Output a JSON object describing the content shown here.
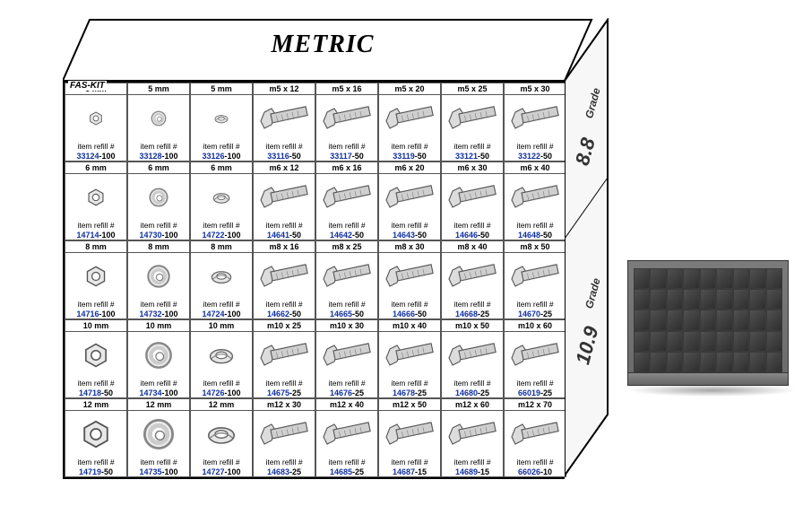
{
  "title": "METRIC",
  "brand": "FAS-KIT",
  "side_labels": {
    "grade_word": "Grade",
    "grade_top": "8.8",
    "grade_bottom": "10.9"
  },
  "refill_label": "item refill #",
  "colors": {
    "partno": "#1030a0",
    "border": "#000000",
    "cell_border": "#555555",
    "bg": "#ffffff",
    "cabinet": "#6f6f6f"
  },
  "rows": [
    [
      {
        "size": "5 mm",
        "type": "nut",
        "pn": "33124",
        "qty": "100"
      },
      {
        "size": "5 mm",
        "type": "washer",
        "pn": "33128",
        "qty": "100"
      },
      {
        "size": "5 mm",
        "type": "lockwasher",
        "pn": "33126",
        "qty": "100"
      },
      {
        "size": "m5 x 12",
        "type": "bolt",
        "pn": "33116",
        "qty": "50"
      },
      {
        "size": "m5 x 16",
        "type": "bolt",
        "pn": "33117",
        "qty": "50"
      },
      {
        "size": "m5 x 20",
        "type": "bolt",
        "pn": "33119",
        "qty": "50"
      },
      {
        "size": "m5 x 25",
        "type": "bolt",
        "pn": "33121",
        "qty": "50"
      },
      {
        "size": "m5 x 30",
        "type": "bolt",
        "pn": "33122",
        "qty": "50"
      }
    ],
    [
      {
        "size": "6 mm",
        "type": "nut",
        "pn": "14714",
        "qty": "100"
      },
      {
        "size": "6 mm",
        "type": "washer",
        "pn": "14730",
        "qty": "100"
      },
      {
        "size": "6 mm",
        "type": "lockwasher",
        "pn": "14722",
        "qty": "100"
      },
      {
        "size": "m6 x 12",
        "type": "bolt",
        "pn": "14641",
        "qty": "50"
      },
      {
        "size": "m6 x 16",
        "type": "bolt",
        "pn": "14642",
        "qty": "50"
      },
      {
        "size": "m6 x 20",
        "type": "bolt",
        "pn": "14643",
        "qty": "50"
      },
      {
        "size": "m6 x 30",
        "type": "bolt",
        "pn": "14646",
        "qty": "50"
      },
      {
        "size": "m6 x 40",
        "type": "bolt",
        "pn": "14648",
        "qty": "50"
      }
    ],
    [
      {
        "size": "8 mm",
        "type": "nut",
        "pn": "14716",
        "qty": "100"
      },
      {
        "size": "8 mm",
        "type": "washer",
        "pn": "14732",
        "qty": "100"
      },
      {
        "size": "8 mm",
        "type": "lockwasher",
        "pn": "14724",
        "qty": "100"
      },
      {
        "size": "m8 x 16",
        "type": "bolt",
        "pn": "14662",
        "qty": "50"
      },
      {
        "size": "m8 x 25",
        "type": "bolt",
        "pn": "14665",
        "qty": "50"
      },
      {
        "size": "m8 x 30",
        "type": "bolt",
        "pn": "14666",
        "qty": "50"
      },
      {
        "size": "m8 x 40",
        "type": "bolt",
        "pn": "14668",
        "qty": "25"
      },
      {
        "size": "m8 x 50",
        "type": "bolt",
        "pn": "14670",
        "qty": "25"
      }
    ],
    [
      {
        "size": "10 mm",
        "type": "nut",
        "pn": "14718",
        "qty": "50"
      },
      {
        "size": "10 mm",
        "type": "washer",
        "pn": "14734",
        "qty": "100"
      },
      {
        "size": "10 mm",
        "type": "lockwasher",
        "pn": "14726",
        "qty": "100"
      },
      {
        "size": "m10 x 25",
        "type": "bolt",
        "pn": "14675",
        "qty": "25"
      },
      {
        "size": "m10 x 30",
        "type": "bolt",
        "pn": "14676",
        "qty": "25"
      },
      {
        "size": "m10 x 40",
        "type": "bolt",
        "pn": "14678",
        "qty": "25"
      },
      {
        "size": "m10 x 50",
        "type": "bolt",
        "pn": "14680",
        "qty": "25"
      },
      {
        "size": "m10 x 60",
        "type": "bolt",
        "pn": "66019",
        "qty": "25"
      }
    ],
    [
      {
        "size": "12 mm",
        "type": "nut",
        "pn": "14719",
        "qty": "50"
      },
      {
        "size": "12 mm",
        "type": "washer",
        "pn": "14735",
        "qty": "100"
      },
      {
        "size": "12 mm",
        "type": "lockwasher",
        "pn": "14727",
        "qty": "100"
      },
      {
        "size": "m12 x 30",
        "type": "bolt",
        "pn": "14683",
        "qty": "25"
      },
      {
        "size": "m12 x 40",
        "type": "bolt",
        "pn": "14685",
        "qty": "25"
      },
      {
        "size": "m12 x 50",
        "type": "bolt",
        "pn": "14687",
        "qty": "15"
      },
      {
        "size": "m12 x 60",
        "type": "bolt",
        "pn": "14689",
        "qty": "15"
      },
      {
        "size": "m12 x 70",
        "type": "bolt",
        "pn": "66026",
        "qty": "10"
      }
    ]
  ],
  "cabinet": {
    "cols": 9,
    "rows": 5
  }
}
